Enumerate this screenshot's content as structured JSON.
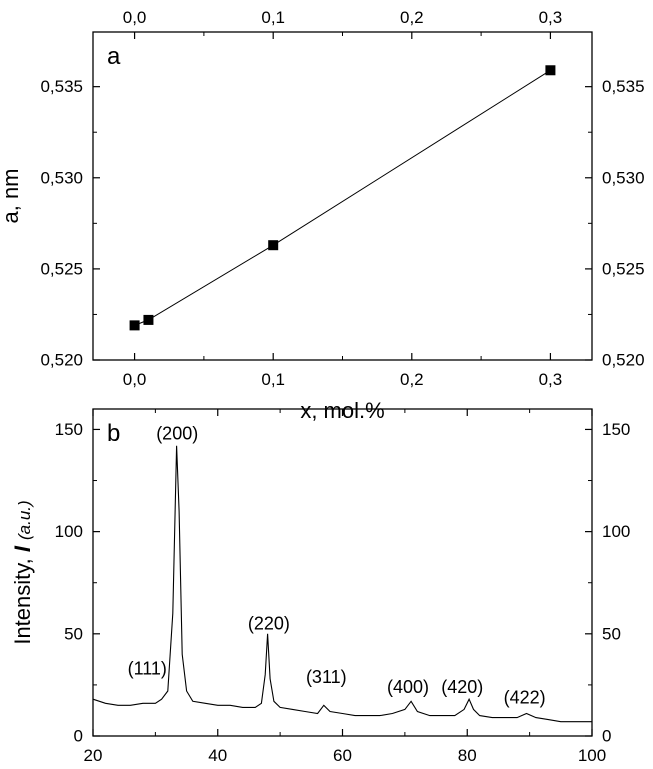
{
  "chart_data": [
    {
      "panel_label": "a",
      "type": "line",
      "marker": "square",
      "xlabel": "x, mol.%",
      "ylabel": "a, nm",
      "xlim": [
        -0.03,
        0.33
      ],
      "ylim": [
        0.52,
        0.538
      ],
      "x_ticks": [
        0,
        0.1,
        0.2,
        0.3
      ],
      "x_tick_labels": [
        "0,0",
        "0,1",
        "0,2",
        "0,3"
      ],
      "y_ticks": [
        0.52,
        0.525,
        0.53,
        0.535
      ],
      "y_tick_labels": [
        "0,520",
        "0,525",
        "0,530",
        "0,535"
      ],
      "mirror_axes": true,
      "grid": false,
      "x": [
        0,
        0.01,
        0.1,
        0.3
      ],
      "y": [
        0.5219,
        0.5222,
        0.5263,
        0.5359
      ]
    },
    {
      "panel_label": "b",
      "type": "line",
      "xlabel": "",
      "ylabel": "Intensity, I (a.u.)",
      "ylabel_parts": {
        "prefix": "Intensity, ",
        "symbol": "I",
        "unit": "(a.u.)"
      },
      "xlim": [
        20,
        100
      ],
      "ylim": [
        0,
        160
      ],
      "x_ticks": [
        20,
        40,
        60,
        80,
        100
      ],
      "x_tick_labels": [
        "20",
        "40",
        "60",
        "80",
        "100"
      ],
      "y_ticks": [
        0,
        50,
        100,
        150
      ],
      "y_tick_labels": [
        "0",
        "50",
        "100",
        "150"
      ],
      "mirror_axes": true,
      "grid": false,
      "annotations": [
        {
          "text": "(111)",
          "x": 28.7,
          "y": 30
        },
        {
          "text": "(200)",
          "x": 33.5,
          "y": 145
        },
        {
          "text": "(220)",
          "x": 48.2,
          "y": 52
        },
        {
          "text": "(311)",
          "x": 57.4,
          "y": 26
        },
        {
          "text": "(400)",
          "x": 70.5,
          "y": 21
        },
        {
          "text": "(420)",
          "x": 79.2,
          "y": 21
        },
        {
          "text": "(422)",
          "x": 89.2,
          "y": 16
        }
      ],
      "x": [
        20,
        22,
        24,
        26,
        28,
        30,
        31,
        32,
        32.8,
        33.4,
        33.8,
        34.3,
        35,
        36,
        38,
        40,
        42,
        44,
        46,
        47,
        47.6,
        48,
        48.4,
        49,
        50,
        52,
        54,
        56,
        57,
        58,
        60,
        62,
        64,
        66,
        68,
        70,
        71,
        72,
        74,
        76,
        78,
        79.5,
        80.3,
        81,
        82,
        84,
        86,
        88,
        89.5,
        91,
        93,
        95,
        97,
        100
      ],
      "y": [
        18,
        16,
        15,
        15,
        16,
        16,
        18,
        22,
        60,
        142,
        110,
        40,
        22,
        17,
        16,
        15,
        15,
        14,
        14,
        16,
        30,
        50,
        28,
        17,
        14,
        13,
        12,
        11,
        15,
        12,
        11,
        10,
        10,
        10,
        11,
        13,
        17,
        12,
        10,
        10,
        10,
        13,
        18,
        13,
        10,
        9,
        9,
        9,
        11,
        9,
        8,
        7,
        7,
        7
      ]
    }
  ]
}
